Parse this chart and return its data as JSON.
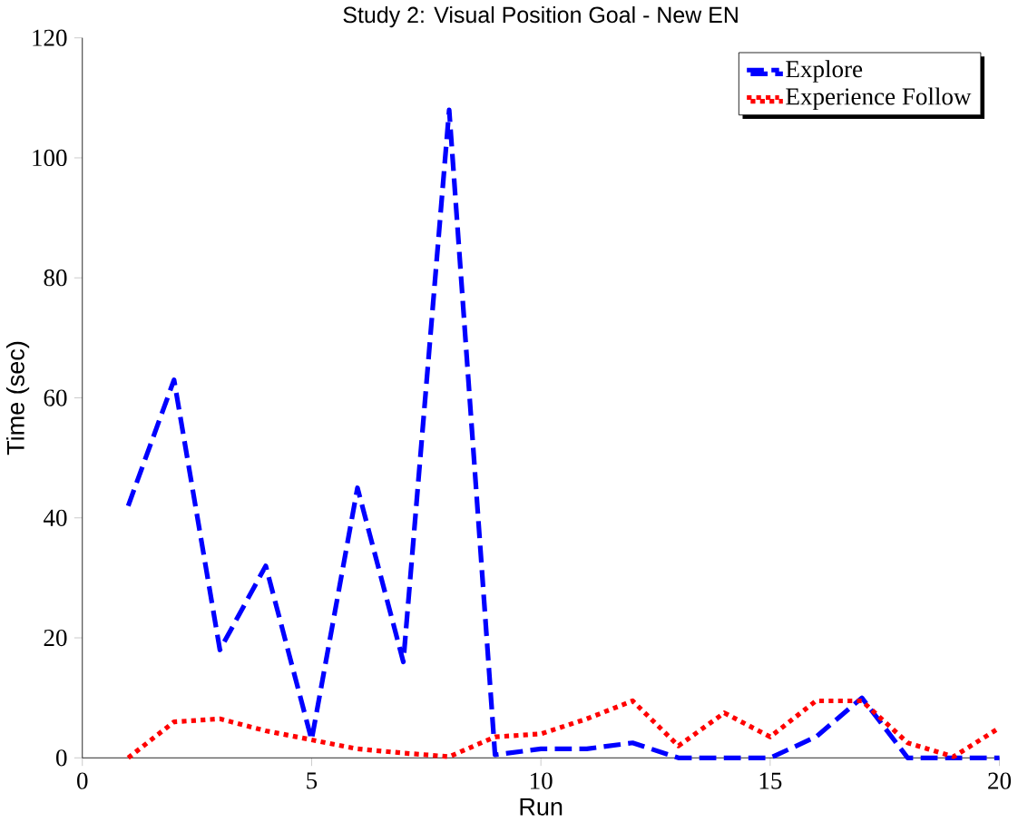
{
  "chart_data": {
    "type": "line",
    "title": "Study 2: Visual Position Goal - New EN",
    "xlabel": "Run",
    "ylabel": "Time (sec)",
    "x": [
      1,
      2,
      3,
      4,
      5,
      6,
      7,
      8,
      9,
      10,
      11,
      12,
      13,
      14,
      15,
      16,
      17,
      18,
      19,
      20
    ],
    "series": [
      {
        "name": "Explore",
        "color": "#0000ff",
        "line_style": "dashed",
        "values": [
          42,
          63,
          18,
          32,
          3,
          45,
          16,
          108,
          0.5,
          1.5,
          1.5,
          2.5,
          0,
          0,
          0,
          3.5,
          10,
          0,
          0,
          0
        ]
      },
      {
        "name": "Experience Follow",
        "color": "#ff0000",
        "line_style": "dotted",
        "values": [
          0,
          6,
          6.5,
          4.5,
          3,
          1.5,
          0.8,
          0.2,
          3.5,
          4,
          6.5,
          9.5,
          2,
          7.5,
          3.5,
          9.5,
          9.5,
          2.5,
          0.2,
          5
        ]
      }
    ],
    "xlim": [
      0,
      20
    ],
    "xticks": [
      0,
      5,
      10,
      15,
      20
    ],
    "ylim": [
      0,
      120
    ],
    "yticks": [
      0,
      20,
      40,
      60,
      80,
      100,
      120
    ],
    "legend": "top right",
    "grid": false,
    "marker": "none"
  }
}
